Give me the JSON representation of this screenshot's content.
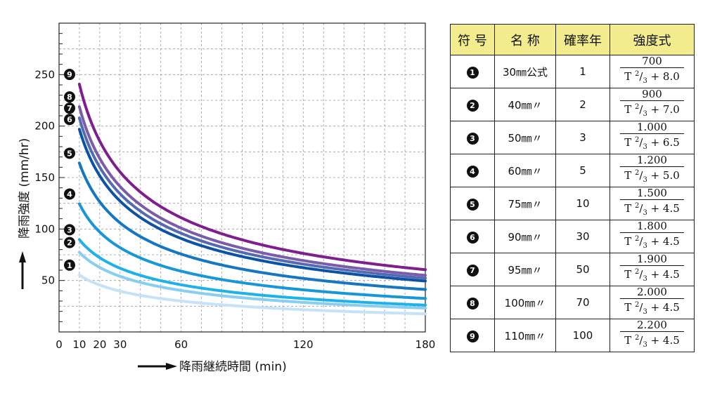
{
  "chart_data": {
    "type": "line",
    "xlabel": "降雨継続時間 (min)",
    "ylabel": "降雨強度 (mm/hr)",
    "x_ticks": [
      0,
      10,
      20,
      30,
      60,
      120,
      180
    ],
    "y_ticks": [
      50,
      100,
      150,
      200,
      250
    ],
    "xlim": [
      0,
      180
    ],
    "ylim": [
      0,
      300
    ],
    "x_grid_every": 10,
    "y_grid_every": 25,
    "grid": "dashed",
    "curve_x_range": [
      10,
      180
    ],
    "series": [
      {
        "marker": "1",
        "a": 700,
        "b": 8.0,
        "color": "#c6e2f7"
      },
      {
        "marker": "2",
        "a": 900,
        "b": 7.0,
        "color": "#89cdef"
      },
      {
        "marker": "3",
        "a": 1000,
        "b": 6.5,
        "color": "#1fb1e8"
      },
      {
        "marker": "4",
        "a": 1200,
        "b": 5.0,
        "color": "#1996d6"
      },
      {
        "marker": "5",
        "a": 1500,
        "b": 4.5,
        "color": "#1677c0"
      },
      {
        "marker": "6",
        "a": 1800,
        "b": 4.5,
        "color": "#0c53a3"
      },
      {
        "marker": "7",
        "a": 1900,
        "b": 4.5,
        "color": "#566ab3"
      },
      {
        "marker": "8",
        "a": 2000,
        "b": 4.5,
        "color": "#7a5da8"
      },
      {
        "marker": "9",
        "a": 2200,
        "b": 4.5,
        "color": "#7f1f8e"
      }
    ]
  },
  "table": {
    "headers": [
      "符 号",
      "名 称",
      "確率年",
      "強度式"
    ],
    "formula_denominator_prefix": "T",
    "formula_exponent": "2/3",
    "rows": [
      {
        "symbol": "1",
        "name": "30㎜公式",
        "years": "1",
        "numerator": "700",
        "denominator_tail": " + 8.0"
      },
      {
        "symbol": "2",
        "name": "40㎜〃",
        "years": "2",
        "numerator": "900",
        "denominator_tail": " + 7.0"
      },
      {
        "symbol": "3",
        "name": "50㎜〃",
        "years": "3",
        "numerator": "1.000",
        "denominator_tail": " + 6.5"
      },
      {
        "symbol": "4",
        "name": "60㎜〃",
        "years": "5",
        "numerator": "1.200",
        "denominator_tail": " + 5.0"
      },
      {
        "symbol": "5",
        "name": "75㎜〃",
        "years": "10",
        "numerator": "1.500",
        "denominator_tail": " + 4.5"
      },
      {
        "symbol": "6",
        "name": "90㎜〃",
        "years": "30",
        "numerator": "1.800",
        "denominator_tail": " + 4.5"
      },
      {
        "symbol": "7",
        "name": "95㎜〃",
        "years": "50",
        "numerator": "1.900",
        "denominator_tail": " + 4.5"
      },
      {
        "symbol": "8",
        "name": "100㎜〃",
        "years": "70",
        "numerator": "2.000",
        "denominator_tail": " + 4.5"
      },
      {
        "symbol": "9",
        "name": "110㎜〃",
        "years": "100",
        "numerator": "2.200",
        "denominator_tail": " + 4.5"
      }
    ]
  }
}
